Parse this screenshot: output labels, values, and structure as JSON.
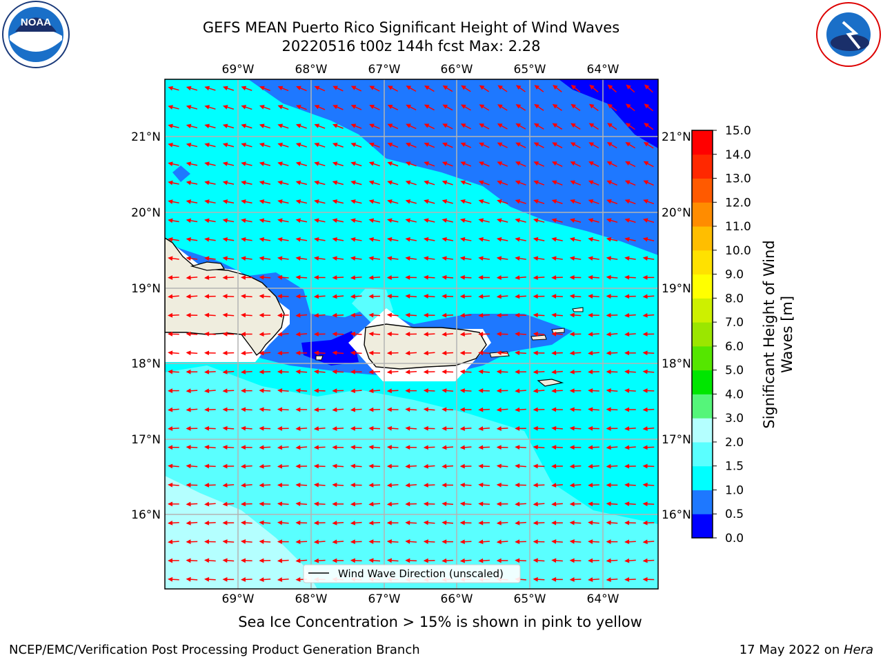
{
  "title_line1": "GEFS MEAN Puerto Rico Significant Height of Wind Waves",
  "title_line2": "20220516 t00z 144h fcst   Max: 2.28",
  "lon_labels": [
    "69°W",
    "68°W",
    "67°W",
    "66°W",
    "65°W",
    "64°W"
  ],
  "lat_labels": [
    "21°N",
    "20°N",
    "19°N",
    "18°N",
    "17°N",
    "16°N"
  ],
  "legend_label": "Wind Wave Direction (unscaled)",
  "ice_note": "Sea Ice Concentration > 15% is shown in pink to yellow",
  "footer_left": "NCEP/EMC/Verification Post Processing Product Generation Branch",
  "footer_date": "17 May 2022 on ",
  "footer_host": "Hera",
  "colorbar": {
    "label_line1": "Significant Height of Wind",
    "label_line2": "Waves [m]",
    "ticks": [
      "0.0",
      "0.5",
      "1.0",
      "1.5",
      "2.0",
      "3.0",
      "4.0",
      "5.0",
      "6.0",
      "7.0",
      "8.0",
      "9.0",
      "10.0",
      "11.0",
      "12.0",
      "13.0",
      "14.0",
      "15.0"
    ],
    "colors": [
      "#0000ff",
      "#1e78ff",
      "#00ffff",
      "#5affff",
      "#b4ffff",
      "#55f57a",
      "#00e600",
      "#55e600",
      "#9be600",
      "#cdf000",
      "#ffff00",
      "#ffe100",
      "#ffbe00",
      "#ff8c00",
      "#ff5a00",
      "#ff2800",
      "#ff0000"
    ]
  },
  "logos": {
    "left": "NOAA",
    "right": "NATIONAL WEATHER SERVICE"
  },
  "colors": {
    "land": "#efedde",
    "arrow": "#ff0000",
    "grid": "#b4b4b4"
  }
}
